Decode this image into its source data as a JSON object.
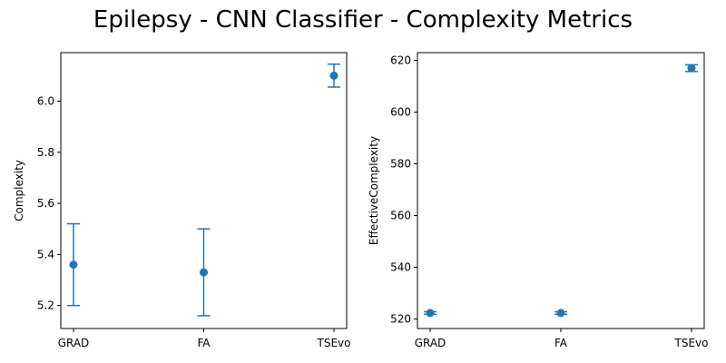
{
  "figure": {
    "title": "Epilepsy - CNN Classifier - Complexity Metrics"
  },
  "colors": {
    "series": "#1f77b4",
    "axes": "#000000",
    "background": "#ffffff"
  },
  "chart_data": [
    {
      "type": "scatter",
      "title": "",
      "xlabel": "",
      "ylabel": "Complexity",
      "categories": [
        "GRAD",
        "FA",
        "TSEvo"
      ],
      "values": [
        5.36,
        5.33,
        6.1
      ],
      "errors": [
        0.16,
        0.17,
        0.045
      ],
      "ylim": [
        5.11,
        6.19
      ],
      "yticks": [
        5.2,
        5.4,
        5.6,
        5.8,
        6.0
      ],
      "ytick_labels": [
        "5.2",
        "5.4",
        "5.6",
        "5.8",
        "6.0"
      ],
      "grid": false,
      "legend": "none"
    },
    {
      "type": "scatter",
      "title": "",
      "xlabel": "",
      "ylabel": "EffectiveComplexity",
      "categories": [
        "GRAD",
        "FA",
        "TSEvo"
      ],
      "values": [
        522.3,
        522.3,
        617.0
      ],
      "errors": [
        0.5,
        0.5,
        1.3
      ],
      "ylim": [
        516.3,
        623.0
      ],
      "yticks": [
        520,
        540,
        560,
        580,
        600,
        620
      ],
      "ytick_labels": [
        "520",
        "540",
        "560",
        "580",
        "600",
        "620"
      ],
      "grid": false,
      "legend": "none"
    }
  ]
}
